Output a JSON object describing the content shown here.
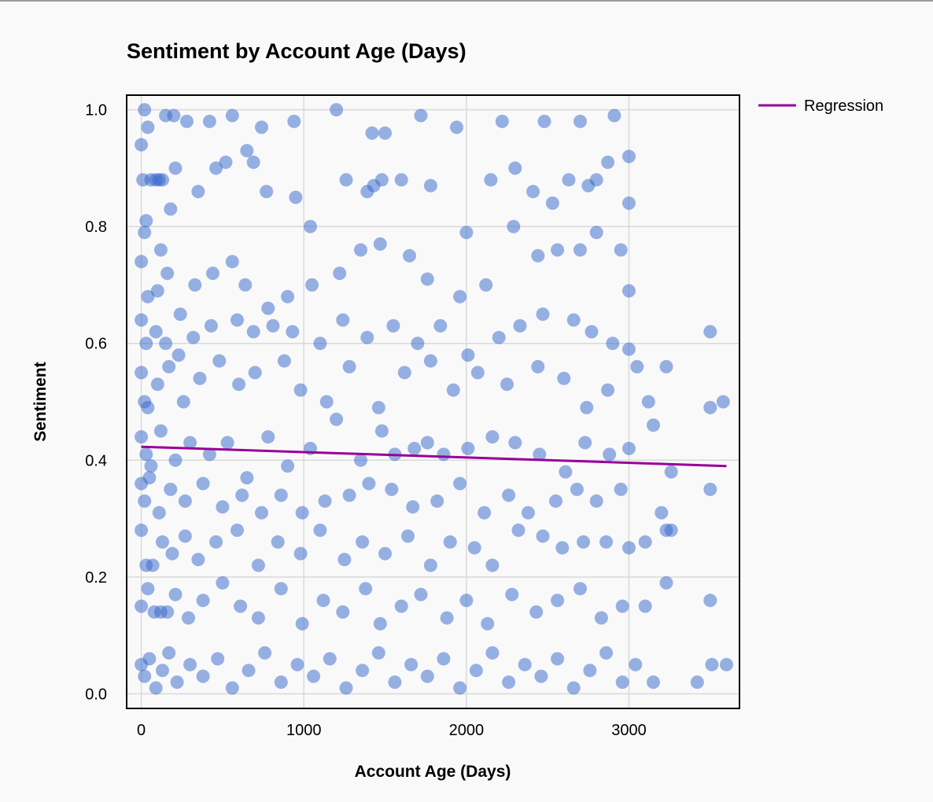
{
  "chart_data": {
    "type": "scatter",
    "title": "Sentiment by Account Age (Days)",
    "xlabel": "Account Age (Days)",
    "ylabel": "Sentiment",
    "xlim": [
      -90,
      3680
    ],
    "ylim": [
      -0.025,
      1.025
    ],
    "xticks": [
      0,
      1000,
      2000,
      3000
    ],
    "xtick_labels": [
      "0",
      "1000",
      "2000",
      "3000"
    ],
    "yticks": [
      0.0,
      0.2,
      0.4,
      0.6,
      0.8,
      1.0
    ],
    "ytick_labels": [
      "0.0",
      "0.2",
      "0.4",
      "0.6",
      "0.8",
      "1.0"
    ],
    "grid": true,
    "legend_position": "top-right, outside plot",
    "series": [
      {
        "kind": "scatter",
        "color": "#3366cc",
        "opacity": 0.5,
        "points": [
          [
            0,
            0.94
          ],
          [
            10,
            0.88
          ],
          [
            20,
            1.0
          ],
          [
            40,
            0.97
          ],
          [
            60,
            0.88
          ],
          [
            90,
            0.88
          ],
          [
            110,
            0.88
          ],
          [
            130,
            0.88
          ],
          [
            150,
            0.99
          ],
          [
            200,
            0.99
          ],
          [
            280,
            0.98
          ],
          [
            420,
            0.98
          ],
          [
            560,
            0.99
          ],
          [
            740,
            0.97
          ],
          [
            940,
            0.98
          ],
          [
            1200,
            1.0
          ],
          [
            1420,
            0.96
          ],
          [
            1500,
            0.96
          ],
          [
            1720,
            0.99
          ],
          [
            1940,
            0.97
          ],
          [
            2220,
            0.98
          ],
          [
            2480,
            0.98
          ],
          [
            2700,
            0.98
          ],
          [
            2910,
            0.99
          ],
          [
            20,
            0.79
          ],
          [
            30,
            0.81
          ],
          [
            120,
            0.76
          ],
          [
            180,
            0.83
          ],
          [
            210,
            0.9
          ],
          [
            350,
            0.86
          ],
          [
            460,
            0.9
          ],
          [
            520,
            0.91
          ],
          [
            650,
            0.93
          ],
          [
            690,
            0.91
          ],
          [
            770,
            0.86
          ],
          [
            950,
            0.85
          ],
          [
            1040,
            0.8
          ],
          [
            1260,
            0.88
          ],
          [
            1390,
            0.86
          ],
          [
            1430,
            0.87
          ],
          [
            1480,
            0.88
          ],
          [
            1600,
            0.88
          ],
          [
            1780,
            0.87
          ],
          [
            2000,
            0.79
          ],
          [
            2150,
            0.88
          ],
          [
            2300,
            0.9
          ],
          [
            2410,
            0.86
          ],
          [
            2530,
            0.84
          ],
          [
            2630,
            0.88
          ],
          [
            2750,
            0.87
          ],
          [
            2800,
            0.88
          ],
          [
            2870,
            0.91
          ],
          [
            3000,
            0.92
          ],
          [
            3000,
            0.84
          ],
          [
            0,
            0.74
          ],
          [
            40,
            0.68
          ],
          [
            100,
            0.69
          ],
          [
            160,
            0.72
          ],
          [
            240,
            0.65
          ],
          [
            330,
            0.7
          ],
          [
            440,
            0.72
          ],
          [
            560,
            0.74
          ],
          [
            640,
            0.7
          ],
          [
            780,
            0.66
          ],
          [
            900,
            0.68
          ],
          [
            1050,
            0.7
          ],
          [
            1220,
            0.72
          ],
          [
            1350,
            0.76
          ],
          [
            1470,
            0.77
          ],
          [
            1650,
            0.75
          ],
          [
            1760,
            0.71
          ],
          [
            1960,
            0.68
          ],
          [
            2120,
            0.7
          ],
          [
            2290,
            0.8
          ],
          [
            2440,
            0.75
          ],
          [
            2560,
            0.76
          ],
          [
            2700,
            0.76
          ],
          [
            2800,
            0.79
          ],
          [
            2950,
            0.76
          ],
          [
            3000,
            0.69
          ],
          [
            0,
            0.64
          ],
          [
            30,
            0.6
          ],
          [
            90,
            0.62
          ],
          [
            150,
            0.6
          ],
          [
            230,
            0.58
          ],
          [
            320,
            0.61
          ],
          [
            430,
            0.63
          ],
          [
            590,
            0.64
          ],
          [
            690,
            0.62
          ],
          [
            810,
            0.63
          ],
          [
            930,
            0.62
          ],
          [
            1100,
            0.6
          ],
          [
            1240,
            0.64
          ],
          [
            1390,
            0.61
          ],
          [
            1550,
            0.63
          ],
          [
            1700,
            0.6
          ],
          [
            1840,
            0.63
          ],
          [
            2010,
            0.58
          ],
          [
            2200,
            0.61
          ],
          [
            2330,
            0.63
          ],
          [
            2470,
            0.65
          ],
          [
            2660,
            0.64
          ],
          [
            2770,
            0.62
          ],
          [
            2900,
            0.6
          ],
          [
            3000,
            0.59
          ],
          [
            3500,
            0.62
          ],
          [
            0,
            0.55
          ],
          [
            20,
            0.5
          ],
          [
            40,
            0.49
          ],
          [
            100,
            0.53
          ],
          [
            170,
            0.56
          ],
          [
            260,
            0.5
          ],
          [
            360,
            0.54
          ],
          [
            480,
            0.57
          ],
          [
            600,
            0.53
          ],
          [
            700,
            0.55
          ],
          [
            880,
            0.57
          ],
          [
            980,
            0.52
          ],
          [
            1140,
            0.5
          ],
          [
            1280,
            0.56
          ],
          [
            1460,
            0.49
          ],
          [
            1620,
            0.55
          ],
          [
            1780,
            0.57
          ],
          [
            1920,
            0.52
          ],
          [
            2070,
            0.55
          ],
          [
            2250,
            0.53
          ],
          [
            2440,
            0.56
          ],
          [
            2600,
            0.54
          ],
          [
            2740,
            0.49
          ],
          [
            2870,
            0.52
          ],
          [
            3050,
            0.56
          ],
          [
            3120,
            0.5
          ],
          [
            3230,
            0.56
          ],
          [
            3500,
            0.49
          ],
          [
            3580,
            0.5
          ],
          [
            0,
            0.44
          ],
          [
            30,
            0.41
          ],
          [
            60,
            0.39
          ],
          [
            120,
            0.45
          ],
          [
            210,
            0.4
          ],
          [
            300,
            0.43
          ],
          [
            420,
            0.41
          ],
          [
            530,
            0.43
          ],
          [
            650,
            0.37
          ],
          [
            780,
            0.44
          ],
          [
            900,
            0.39
          ],
          [
            1040,
            0.42
          ],
          [
            1200,
            0.47
          ],
          [
            1350,
            0.4
          ],
          [
            1480,
            0.45
          ],
          [
            1560,
            0.41
          ],
          [
            1680,
            0.42
          ],
          [
            1760,
            0.43
          ],
          [
            1860,
            0.41
          ],
          [
            2010,
            0.42
          ],
          [
            2160,
            0.44
          ],
          [
            2300,
            0.43
          ],
          [
            2450,
            0.41
          ],
          [
            2610,
            0.38
          ],
          [
            2730,
            0.43
          ],
          [
            2880,
            0.41
          ],
          [
            3000,
            0.42
          ],
          [
            3150,
            0.46
          ],
          [
            3260,
            0.38
          ],
          [
            0,
            0.36
          ],
          [
            20,
            0.33
          ],
          [
            50,
            0.37
          ],
          [
            110,
            0.31
          ],
          [
            180,
            0.35
          ],
          [
            270,
            0.33
          ],
          [
            380,
            0.36
          ],
          [
            500,
            0.32
          ],
          [
            620,
            0.34
          ],
          [
            740,
            0.31
          ],
          [
            860,
            0.34
          ],
          [
            990,
            0.31
          ],
          [
            1130,
            0.33
          ],
          [
            1280,
            0.34
          ],
          [
            1400,
            0.36
          ],
          [
            1540,
            0.35
          ],
          [
            1670,
            0.32
          ],
          [
            1820,
            0.33
          ],
          [
            1960,
            0.36
          ],
          [
            2110,
            0.31
          ],
          [
            2260,
            0.34
          ],
          [
            2380,
            0.31
          ],
          [
            2550,
            0.33
          ],
          [
            2680,
            0.35
          ],
          [
            2800,
            0.33
          ],
          [
            2950,
            0.35
          ],
          [
            3200,
            0.31
          ],
          [
            3500,
            0.35
          ],
          [
            0,
            0.28
          ],
          [
            30,
            0.22
          ],
          [
            70,
            0.22
          ],
          [
            130,
            0.26
          ],
          [
            190,
            0.24
          ],
          [
            270,
            0.27
          ],
          [
            350,
            0.23
          ],
          [
            460,
            0.26
          ],
          [
            590,
            0.28
          ],
          [
            720,
            0.22
          ],
          [
            840,
            0.26
          ],
          [
            980,
            0.24
          ],
          [
            1100,
            0.28
          ],
          [
            1250,
            0.23
          ],
          [
            1360,
            0.26
          ],
          [
            1500,
            0.24
          ],
          [
            1640,
            0.27
          ],
          [
            1780,
            0.22
          ],
          [
            1900,
            0.26
          ],
          [
            2050,
            0.25
          ],
          [
            2160,
            0.22
          ],
          [
            2320,
            0.28
          ],
          [
            2470,
            0.27
          ],
          [
            2590,
            0.25
          ],
          [
            2720,
            0.26
          ],
          [
            2860,
            0.26
          ],
          [
            3000,
            0.25
          ],
          [
            3100,
            0.26
          ],
          [
            3230,
            0.28
          ],
          [
            3260,
            0.28
          ],
          [
            0,
            0.15
          ],
          [
            40,
            0.18
          ],
          [
            80,
            0.14
          ],
          [
            120,
            0.14
          ],
          [
            160,
            0.14
          ],
          [
            210,
            0.17
          ],
          [
            290,
            0.13
          ],
          [
            380,
            0.16
          ],
          [
            500,
            0.19
          ],
          [
            610,
            0.15
          ],
          [
            720,
            0.13
          ],
          [
            860,
            0.18
          ],
          [
            990,
            0.12
          ],
          [
            1120,
            0.16
          ],
          [
            1240,
            0.14
          ],
          [
            1380,
            0.18
          ],
          [
            1470,
            0.12
          ],
          [
            1600,
            0.15
          ],
          [
            1720,
            0.17
          ],
          [
            1880,
            0.13
          ],
          [
            2000,
            0.16
          ],
          [
            2130,
            0.12
          ],
          [
            2280,
            0.17
          ],
          [
            2430,
            0.14
          ],
          [
            2560,
            0.16
          ],
          [
            2700,
            0.18
          ],
          [
            2830,
            0.13
          ],
          [
            2960,
            0.15
          ],
          [
            3100,
            0.15
          ],
          [
            3230,
            0.19
          ],
          [
            3500,
            0.16
          ],
          [
            0,
            0.05
          ],
          [
            20,
            0.03
          ],
          [
            50,
            0.06
          ],
          [
            90,
            0.01
          ],
          [
            130,
            0.04
          ],
          [
            170,
            0.07
          ],
          [
            220,
            0.02
          ],
          [
            300,
            0.05
          ],
          [
            380,
            0.03
          ],
          [
            470,
            0.06
          ],
          [
            560,
            0.01
          ],
          [
            660,
            0.04
          ],
          [
            760,
            0.07
          ],
          [
            860,
            0.02
          ],
          [
            960,
            0.05
          ],
          [
            1060,
            0.03
          ],
          [
            1160,
            0.06
          ],
          [
            1260,
            0.01
          ],
          [
            1360,
            0.04
          ],
          [
            1460,
            0.07
          ],
          [
            1560,
            0.02
          ],
          [
            1660,
            0.05
          ],
          [
            1760,
            0.03
          ],
          [
            1860,
            0.06
          ],
          [
            1960,
            0.01
          ],
          [
            2060,
            0.04
          ],
          [
            2160,
            0.07
          ],
          [
            2260,
            0.02
          ],
          [
            2360,
            0.05
          ],
          [
            2460,
            0.03
          ],
          [
            2560,
            0.06
          ],
          [
            2660,
            0.01
          ],
          [
            2760,
            0.04
          ],
          [
            2860,
            0.07
          ],
          [
            2960,
            0.02
          ],
          [
            3040,
            0.05
          ],
          [
            3150,
            0.02
          ],
          [
            3420,
            0.02
          ],
          [
            3510,
            0.05
          ],
          [
            3600,
            0.05
          ]
        ]
      },
      {
        "name": "Regression",
        "kind": "line",
        "color": "#990099",
        "points": [
          [
            0,
            0.423
          ],
          [
            3600,
            0.39
          ]
        ]
      }
    ]
  }
}
